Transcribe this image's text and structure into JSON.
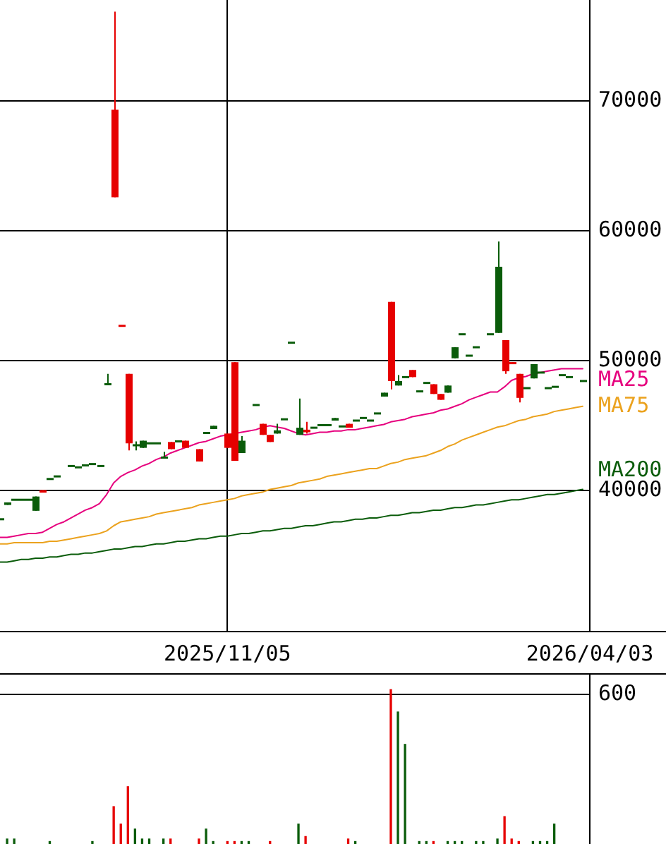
{
  "chart_data": [
    {
      "type": "candlestick",
      "categories": [
        null,
        null,
        null,
        null,
        null,
        null,
        null,
        null,
        null,
        null,
        null,
        null,
        null,
        null,
        null,
        null,
        null,
        null,
        null,
        null,
        null,
        null,
        null,
        null,
        null,
        null,
        null,
        null,
        null,
        null,
        null,
        null,
        "2025/11/05",
        null,
        null,
        null,
        null,
        null,
        null,
        null,
        null,
        null,
        null,
        null,
        null,
        null,
        null,
        null,
        null,
        null,
        null,
        null,
        null,
        null,
        null,
        null,
        null,
        null,
        null,
        null,
        null,
        null,
        null,
        null,
        null,
        null,
        null,
        null,
        null,
        null,
        null,
        null,
        null,
        null,
        null,
        null,
        null,
        null,
        null,
        null,
        null,
        null,
        null,
        "2026/04/03"
      ],
      "ohlc": [
        [
          37800,
          37800,
          37800,
          37800
        ],
        [
          39100,
          39100,
          38900,
          38900
        ],
        [
          39300,
          39300,
          39300,
          39300
        ],
        [
          39300,
          39300,
          39300,
          39300
        ],
        [
          39300,
          39300,
          39300,
          39300
        ],
        [
          39550,
          39550,
          38450,
          38450
        ],
        [
          39850,
          40050,
          39850,
          40050
        ],
        [
          40900,
          40900,
          40900,
          40900
        ],
        [
          41100,
          41100,
          41100,
          41100
        ],
        null,
        [
          41900,
          41900,
          41900,
          41900
        ],
        [
          41800,
          41800,
          41800,
          41800
        ],
        [
          41950,
          41950,
          41950,
          41950
        ],
        [
          42050,
          42050,
          42050,
          42050
        ],
        [
          41900,
          41900,
          41900,
          41900
        ],
        [
          48200,
          49000,
          48200,
          48200
        ],
        [
          62600,
          76900,
          62600,
          69350
        ],
        [
          52700,
          52700,
          52700,
          52700
        ],
        [
          43650,
          49000,
          43100,
          49000
        ],
        [
          43500,
          43800,
          43100,
          43500
        ],
        [
          43850,
          43850,
          43300,
          43300
        ],
        [
          43650,
          43650,
          43650,
          43650
        ],
        [
          43650,
          43650,
          43650,
          43650
        ],
        [
          42550,
          43000,
          42550,
          42550
        ],
        [
          43200,
          43750,
          43200,
          43750
        ],
        [
          43800,
          43800,
          43800,
          43800
        ],
        [
          43300,
          43850,
          43300,
          43850
        ],
        null,
        [
          42250,
          43200,
          42250,
          43200
        ],
        [
          44500,
          44500,
          44400,
          44400
        ],
        [
          45000,
          45000,
          44750,
          44750
        ],
        null,
        [
          43300,
          44400,
          43300,
          44400
        ],
        [
          42300,
          49900,
          42300,
          49900
        ],
        [
          43850,
          44200,
          42900,
          42900
        ],
        null,
        [
          46600,
          46600,
          46600,
          46600
        ],
        [
          44300,
          45150,
          44300,
          45150
        ],
        [
          43750,
          44300,
          43750,
          44300
        ],
        [
          44650,
          45150,
          44400,
          44400
        ],
        [
          45500,
          45500,
          45500,
          45500
        ],
        [
          51400,
          51400,
          51400,
          51400
        ],
        [
          44850,
          47100,
          44300,
          44300
        ],
        [
          44500,
          45300,
          44400,
          44700
        ],
        [
          44850,
          44850,
          44850,
          44850
        ],
        [
          45050,
          45050,
          45050,
          45050
        ],
        [
          45050,
          45050,
          45050,
          45050
        ],
        [
          45600,
          45600,
          45400,
          45400
        ],
        [
          44950,
          44950,
          44950,
          44950
        ],
        [
          44850,
          45150,
          44850,
          45150
        ],
        [
          45400,
          45400,
          45400,
          45400
        ],
        [
          45600,
          45600,
          45600,
          45600
        ],
        [
          45400,
          45400,
          45400,
          45400
        ],
        [
          45950,
          45950,
          45950,
          45950
        ],
        [
          47550,
          47550,
          47250,
          47250
        ],
        [
          48450,
          54550,
          47800,
          54550
        ],
        [
          48450,
          48900,
          48100,
          48100
        ],
        [
          48750,
          48750,
          48750,
          48750
        ],
        [
          48750,
          49300,
          48750,
          49300
        ],
        [
          47650,
          47650,
          47650,
          47650
        ],
        [
          48300,
          48300,
          48300,
          48300
        ],
        [
          47450,
          48200,
          47450,
          48200
        ],
        [
          47000,
          47450,
          47000,
          47450
        ],
        [
          48100,
          48100,
          47550,
          47550
        ],
        [
          51050,
          51050,
          50200,
          50200
        ],
        [
          52050,
          52050,
          52050,
          52050
        ],
        [
          50400,
          50400,
          50400,
          50400
        ],
        [
          51050,
          51050,
          51050,
          51050
        ],
        null,
        [
          52050,
          52050,
          52050,
          52050
        ],
        [
          57250,
          59200,
          52150,
          52150
        ],
        [
          49200,
          51600,
          49000,
          51600
        ],
        [
          49750,
          49900,
          49750,
          49900
        ],
        [
          47150,
          49000,
          46800,
          49000
        ],
        [
          47900,
          47900,
          47900,
          47900
        ],
        [
          49750,
          49750,
          48650,
          48650
        ],
        [
          49100,
          49100,
          49100,
          49100
        ],
        [
          47900,
          47900,
          47900,
          47900
        ],
        [
          48000,
          48000,
          48000,
          48000
        ],
        [
          48900,
          48900,
          48900,
          48900
        ],
        [
          48750,
          48750,
          48750,
          48750
        ],
        null,
        [
          48450,
          48450,
          48450,
          48450
        ],
        null
      ],
      "colors": [
        "#0a5c0a",
        "#0a5c0a",
        "#0a5c0a",
        "#0a5c0a",
        "#0a5c0a",
        "#0a5c0a",
        "#e60000",
        "#0a5c0a",
        "#0a5c0a",
        null,
        "#0a5c0a",
        "#0a5c0a",
        "#0a5c0a",
        "#0a5c0a",
        "#0a5c0a",
        "#0a5c0a",
        "#e60000",
        "#e60000",
        "#e60000",
        "#0a5c0a",
        "#0a5c0a",
        "#0a5c0a",
        "#0a5c0a",
        "#0a5c0a",
        "#e60000",
        "#0a5c0a",
        "#e60000",
        null,
        "#e60000",
        "#0a5c0a",
        "#0a5c0a",
        null,
        "#e60000",
        "#e60000",
        "#0a5c0a",
        null,
        "#0a5c0a",
        "#e60000",
        "#e60000",
        "#0a5c0a",
        "#0a5c0a",
        "#0a5c0a",
        "#0a5c0a",
        "#e60000",
        "#0a5c0a",
        "#0a5c0a",
        "#0a5c0a",
        "#0a5c0a",
        "#0a5c0a",
        "#e60000",
        "#0a5c0a",
        "#0a5c0a",
        "#0a5c0a",
        "#0a5c0a",
        "#0a5c0a",
        "#e60000",
        "#0a5c0a",
        "#0a5c0a",
        "#e60000",
        "#0a5c0a",
        "#0a5c0a",
        "#e60000",
        "#e60000",
        "#0a5c0a",
        "#0a5c0a",
        "#0a5c0a",
        "#0a5c0a",
        "#0a5c0a",
        null,
        "#0a5c0a",
        "#0a5c0a",
        "#e60000",
        "#e60000",
        "#e60000",
        "#0a5c0a",
        "#0a5c0a",
        "#0a5c0a",
        "#0a5c0a",
        "#0a5c0a",
        "#0a5c0a",
        "#0a5c0a",
        null,
        "#0a5c0a",
        null
      ],
      "series": [
        {
          "name": "MA25",
          "type": "line",
          "color": "#e6007e",
          "values": [
            36400,
            36400,
            36500,
            36600,
            36700,
            36700,
            36800,
            37100,
            37400,
            37600,
            37900,
            38200,
            38500,
            38700,
            39000,
            39700,
            40600,
            41100,
            41400,
            41600,
            41900,
            42100,
            42400,
            42600,
            42900,
            43100,
            43300,
            43500,
            43700,
            43800,
            44000,
            44200,
            44300,
            44400,
            44500,
            44600,
            44700,
            44900,
            45000,
            44900,
            44800,
            44600,
            44400,
            44300,
            44400,
            44500,
            44500,
            44600,
            44600,
            44700,
            44700,
            44800,
            44900,
            45000,
            45100,
            45300,
            45400,
            45500,
            45700,
            45800,
            45900,
            46000,
            46200,
            46300,
            46500,
            46700,
            47000,
            47200,
            47400,
            47600,
            47600,
            48000,
            48500,
            48700,
            48800,
            49000,
            49100,
            49200,
            49300,
            49400,
            49400,
            49400,
            49400,
            null
          ]
        },
        {
          "name": "MA75",
          "type": "line",
          "color": "#eba21e",
          "values": [
            35900,
            35900,
            36000,
            36000,
            36000,
            36000,
            36000,
            36100,
            36100,
            36200,
            36300,
            36400,
            36500,
            36600,
            36700,
            36900,
            37300,
            37600,
            37700,
            37800,
            37900,
            38000,
            38200,
            38300,
            38400,
            38500,
            38600,
            38700,
            38900,
            39000,
            39100,
            39200,
            39300,
            39400,
            39600,
            39700,
            39800,
            39900,
            40100,
            40200,
            40300,
            40400,
            40600,
            40700,
            40800,
            40900,
            41100,
            41200,
            41300,
            41400,
            41500,
            41600,
            41700,
            41700,
            41900,
            42100,
            42200,
            42400,
            42500,
            42600,
            42700,
            42900,
            43100,
            43400,
            43600,
            43900,
            44100,
            44300,
            44500,
            44700,
            44900,
            45000,
            45200,
            45400,
            45500,
            45700,
            45800,
            45900,
            46100,
            46200,
            46300,
            46400,
            46500,
            null
          ]
        },
        {
          "name": "MA200",
          "type": "line",
          "color": "#0a5c0a",
          "values": [
            34500,
            34500,
            34600,
            34700,
            34700,
            34800,
            34800,
            34900,
            34900,
            35000,
            35100,
            35100,
            35200,
            35200,
            35300,
            35400,
            35500,
            35500,
            35600,
            35700,
            35700,
            35800,
            35900,
            35900,
            36000,
            36100,
            36100,
            36200,
            36300,
            36300,
            36400,
            36500,
            36500,
            36600,
            36700,
            36700,
            36800,
            36900,
            36900,
            37000,
            37100,
            37100,
            37200,
            37300,
            37300,
            37400,
            37500,
            37600,
            37600,
            37700,
            37800,
            37800,
            37900,
            37900,
            38000,
            38100,
            38100,
            38200,
            38300,
            38300,
            38400,
            38500,
            38500,
            38600,
            38700,
            38700,
            38800,
            38900,
            38900,
            39000,
            39100,
            39200,
            39300,
            39300,
            39400,
            39500,
            39600,
            39700,
            39700,
            39800,
            39900,
            40000,
            40100,
            null
          ]
        }
      ],
      "ylim": [
        29200,
        77800
      ],
      "yticks": [
        40000,
        50000,
        60000,
        70000
      ],
      "grid": true
    },
    {
      "type": "bar",
      "categories": [
        null,
        null,
        null,
        null,
        null,
        null,
        null,
        null,
        null,
        null,
        null,
        null,
        null,
        null,
        null,
        null,
        null,
        null,
        null,
        null,
        null,
        null,
        null,
        null,
        null,
        null,
        null,
        null,
        null,
        null,
        null,
        null,
        "2025/11/05",
        null,
        null,
        null,
        null,
        null,
        null,
        null,
        null,
        null,
        null,
        null,
        null,
        null,
        null,
        null,
        null,
        null,
        null,
        null,
        null,
        null,
        null,
        null,
        null,
        null,
        null,
        null,
        null,
        null,
        null,
        null,
        null,
        null,
        null,
        null,
        null,
        null,
        null,
        null,
        null,
        null,
        null,
        null,
        null,
        null,
        null,
        null,
        null,
        null,
        null,
        "2026/04/03"
      ],
      "values": [
        null,
        20,
        20,
        null,
        null,
        null,
        null,
        10,
        null,
        null,
        null,
        null,
        null,
        10,
        null,
        null,
        150,
        80,
        230,
        60,
        20,
        20,
        null,
        20,
        20,
        null,
        null,
        null,
        20,
        60,
        10,
        null,
        10,
        10,
        10,
        10,
        null,
        null,
        10,
        null,
        null,
        null,
        80,
        30,
        null,
        null,
        null,
        null,
        null,
        20,
        10,
        null,
        null,
        null,
        null,
        620,
        530,
        400,
        null,
        10,
        10,
        10,
        null,
        10,
        10,
        10,
        null,
        10,
        10,
        null,
        20,
        110,
        20,
        10,
        null,
        10,
        10,
        10,
        80,
        null,
        null,
        null,
        null,
        null
      ],
      "colors": [
        null,
        "#0a5c0a",
        "#0a5c0a",
        null,
        null,
        null,
        null,
        "#0a5c0a",
        null,
        null,
        null,
        null,
        null,
        "#0a5c0a",
        null,
        null,
        "#e60000",
        "#e60000",
        "#e60000",
        "#0a5c0a",
        "#0a5c0a",
        "#0a5c0a",
        null,
        "#0a5c0a",
        "#e60000",
        null,
        null,
        null,
        "#e60000",
        "#0a5c0a",
        "#0a5c0a",
        null,
        "#e60000",
        "#e60000",
        "#0a5c0a",
        "#0a5c0a",
        null,
        null,
        "#e60000",
        null,
        null,
        null,
        "#0a5c0a",
        "#e60000",
        null,
        null,
        null,
        null,
        null,
        "#e60000",
        "#0a5c0a",
        null,
        null,
        null,
        null,
        "#e60000",
        "#0a5c0a",
        "#0a5c0a",
        null,
        "#0a5c0a",
        "#0a5c0a",
        "#e60000",
        null,
        "#0a5c0a",
        "#0a5c0a",
        "#0a5c0a",
        null,
        "#0a5c0a",
        "#0a5c0a",
        null,
        "#0a5c0a",
        "#e60000",
        "#e60000",
        "#e60000",
        null,
        "#0a5c0a",
        "#0a5c0a",
        "#0a5c0a",
        "#0a5c0a",
        null,
        null,
        null,
        null,
        null
      ],
      "ylim": [
        0,
        680
      ],
      "yticks": [
        600
      ],
      "grid": "y",
      "tick_labels": "y"
    }
  ]
}
